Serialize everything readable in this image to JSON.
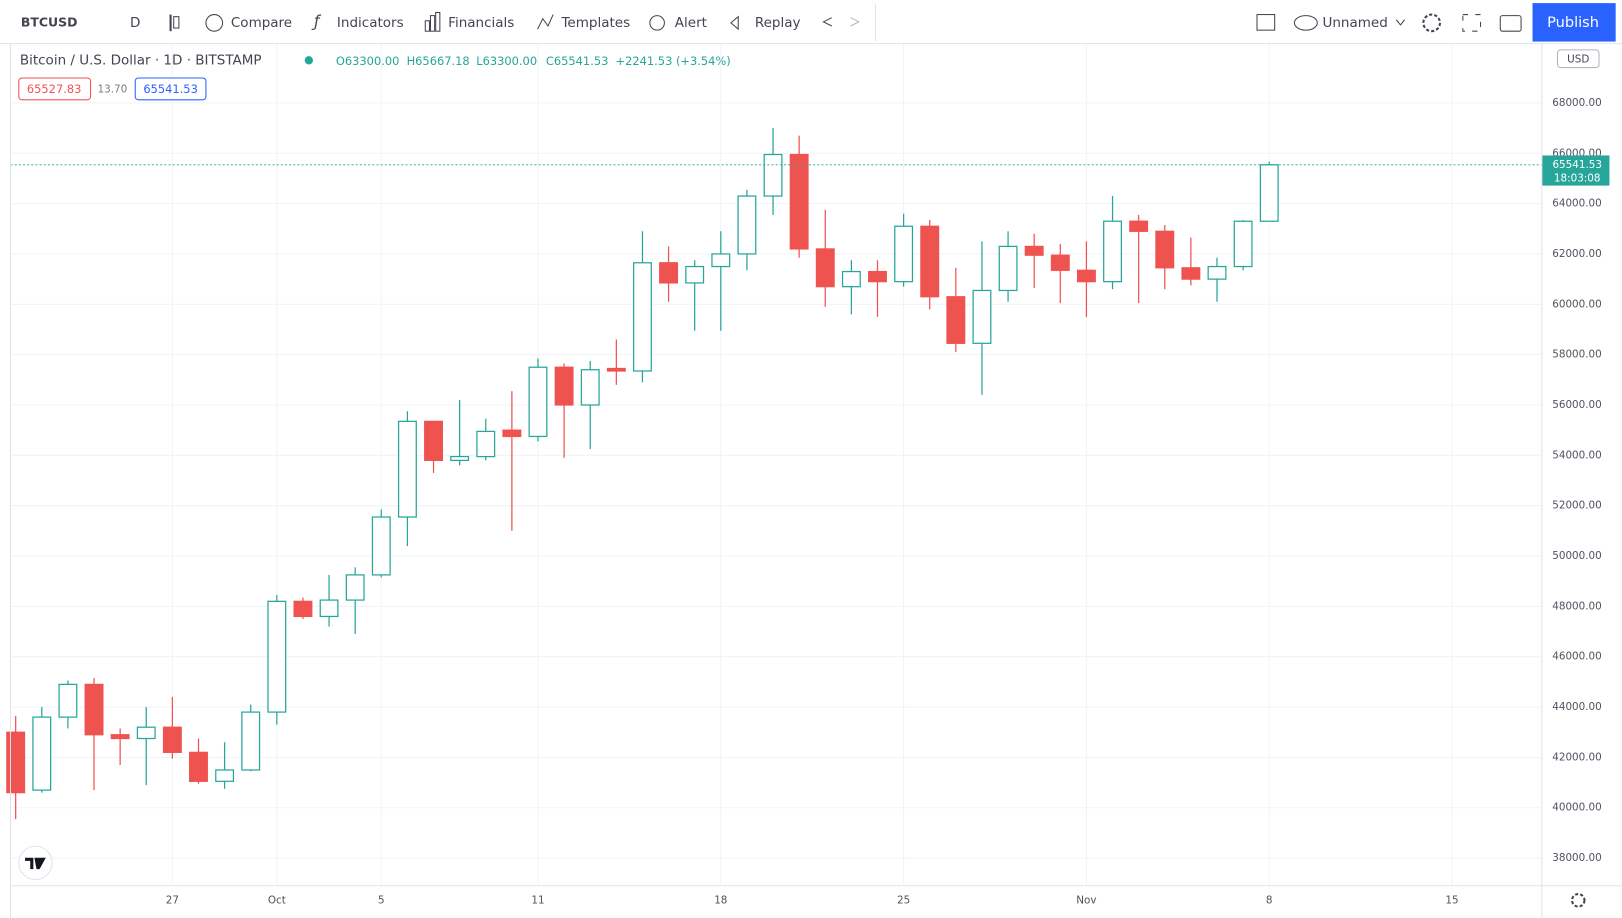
{
  "toolbar": {
    "symbol": "BTCUSD",
    "interval": "D",
    "buttons": [
      "Compare",
      "Indicators",
      "Financials",
      "Templates",
      "Alert",
      "Replay"
    ],
    "layout_name": "Unnamed",
    "publish": "Publish"
  },
  "legend": {
    "title": "Bitcoin / U.S. Dollar · 1D · BITSTAMP",
    "ohlc": [
      "O63300.00",
      "H65667.18",
      "L63300.00",
      "C65541.53",
      "+2241.53 (+3.54%)"
    ],
    "bid": "65527.83",
    "spread": "13.70",
    "ask": "65541.53"
  },
  "chart_data": {
    "type": "candlestick",
    "categories": [
      null,
      null,
      null,
      null,
      null,
      null,
      "27",
      null,
      null,
      null,
      "Oct",
      null,
      null,
      null,
      "5",
      null,
      null,
      null,
      null,
      null,
      "11",
      null,
      null,
      null,
      null,
      null,
      null,
      "18",
      null,
      null,
      null,
      null,
      null,
      null,
      "25",
      null,
      null,
      null,
      null,
      null,
      null,
      "Nov",
      null,
      null,
      null,
      null,
      null,
      null,
      "8",
      null,
      null,
      null,
      null,
      null,
      null,
      "15"
    ],
    "open": [
      43000,
      40700,
      43600,
      44900,
      42900,
      42750,
      43200,
      42200,
      41050,
      41500,
      43800,
      48200,
      47600,
      48250,
      49250,
      51550,
      55350,
      53800,
      53950,
      55000,
      54750,
      57500,
      56000,
      57450,
      57350,
      61650,
      60850,
      61500,
      62000,
      64300,
      65950,
      62200,
      60700,
      61300,
      60900,
      63100,
      60300,
      58450,
      60550,
      62300,
      61950,
      61350,
      60900,
      63300,
      62900,
      61450,
      61000,
      61500,
      63300,
      null,
      null,
      null,
      null,
      null,
      null,
      null
    ],
    "high": [
      43650,
      44000,
      45050,
      45150,
      43150,
      44000,
      44400,
      42750,
      42600,
      44100,
      48450,
      48350,
      49250,
      49550,
      51850,
      55750,
      55350,
      56200,
      55450,
      56550,
      57850,
      57650,
      57750,
      58600,
      62900,
      62300,
      61750,
      62900,
      64550,
      67000,
      66700,
      63750,
      61750,
      61750,
      63600,
      63350,
      61450,
      62500,
      62900,
      62800,
      62400,
      62500,
      64300,
      63550,
      63150,
      62650,
      61850,
      63350,
      65667.18,
      null,
      null,
      null,
      null,
      null,
      null,
      null
    ],
    "low": [
      39550,
      40600,
      43150,
      40700,
      41700,
      40900,
      41950,
      40950,
      40750,
      41450,
      43300,
      47500,
      47200,
      46900,
      49150,
      50400,
      53300,
      53600,
      53800,
      51000,
      54550,
      53900,
      54250,
      56800,
      56900,
      60100,
      58950,
      58950,
      61350,
      63550,
      61850,
      59900,
      59600,
      59500,
      60700,
      59800,
      58100,
      56400,
      60100,
      60650,
      60050,
      59500,
      60600,
      60050,
      60600,
      60750,
      60100,
      61350,
      63300,
      null,
      null,
      null,
      null,
      null,
      null,
      null
    ],
    "close": [
      40600,
      43600,
      44900,
      42900,
      42750,
      43200,
      42200,
      41050,
      41500,
      43800,
      48200,
      47600,
      48250,
      49250,
      51550,
      55350,
      53800,
      53950,
      54950,
      54750,
      57500,
      56000,
      57400,
      57350,
      61650,
      60850,
      61500,
      62000,
      64300,
      65950,
      62200,
      60700,
      61300,
      60900,
      63100,
      60300,
      58450,
      60550,
      62300,
      61950,
      61350,
      60900,
      63300,
      62900,
      61450,
      61000,
      61500,
      63300,
      65541.53,
      null,
      null,
      null,
      null,
      null,
      null,
      null
    ],
    "up_color": "#26a69a",
    "down_color": "#ef5350",
    "ylim": [
      36900,
      70230
    ],
    "yticks": [
      {
        "value": 38000,
        "label": "38000.00"
      },
      {
        "value": 40000,
        "label": "40000.00"
      },
      {
        "value": 42000,
        "label": "42000.00"
      },
      {
        "value": 44000,
        "label": "44000.00"
      },
      {
        "value": 46000,
        "label": "46000.00"
      },
      {
        "value": 48000,
        "label": "48000.00"
      },
      {
        "value": 50000,
        "label": "50000.00"
      },
      {
        "value": 52000,
        "label": "52000.00"
      },
      {
        "value": 54000,
        "label": "54000.00"
      },
      {
        "value": 56000,
        "label": "56000.00"
      },
      {
        "value": 58000,
        "label": "58000.00"
      },
      {
        "value": 60000,
        "label": "60000.00"
      },
      {
        "value": 62000,
        "label": "62000.00"
      },
      {
        "value": 64000,
        "label": "64000.00"
      },
      {
        "value": 66000,
        "label": "66000.00"
      },
      {
        "value": 68000,
        "label": "68000.00"
      }
    ],
    "grid": true,
    "last_price_label": "65541.53",
    "last_price_time": "18:03:08",
    "currency": "USD"
  }
}
